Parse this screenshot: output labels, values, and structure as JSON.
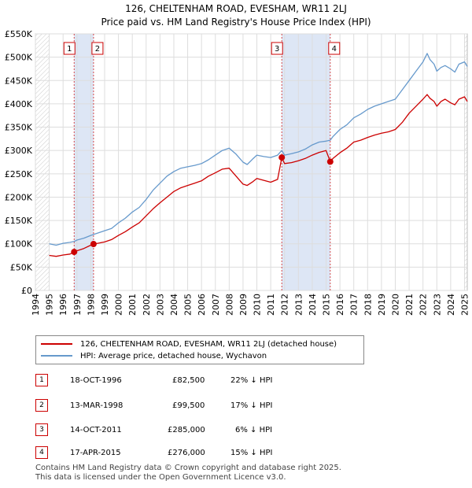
{
  "page": {
    "title": "126, CHELTENHAM ROAD, EVESHAM, WR11 2LJ",
    "subtitle": "Price paid vs. HM Land Registry's House Price Index (HPI)",
    "footer_line1": "Contains HM Land Registry data © Crown copyright and database right 2025.",
    "footer_line2": "This data is licensed under the Open Government Licence v3.0."
  },
  "legend": {
    "property_label": "126, CHELTENHAM ROAD, EVESHAM, WR11 2LJ (detached house)",
    "hpi_label": "HPI: Average price, detached house, Wychavon"
  },
  "sales": [
    {
      "num": "1",
      "date": "18-OCT-1996",
      "price": "£82,500",
      "hpi": "22% ↓ HPI"
    },
    {
      "num": "2",
      "date": "13-MAR-1998",
      "price": "£99,500",
      "hpi": "17% ↓ HPI"
    },
    {
      "num": "3",
      "date": "14-OCT-2011",
      "price": "£285,000",
      "hpi": "6% ↓ HPI"
    },
    {
      "num": "4",
      "date": "17-APR-2015",
      "price": "£276,000",
      "hpi": "15% ↓ HPI"
    }
  ],
  "colors": {
    "property": "#cc0000",
    "hpi": "#6699cc",
    "shade": "#dde6f5",
    "grid": "#dddddd"
  },
  "chart_data": {
    "type": "line",
    "title": "126, CHELTENHAM ROAD, EVESHAM, WR11 2LJ",
    "subtitle": "Price paid vs. HM Land Registry's House Price Index (HPI)",
    "xlim": [
      1995.0,
      2025.3
    ],
    "ylim": [
      0,
      550000
    ],
    "x_ticks": [
      1994,
      1995,
      1996,
      1997,
      1998,
      1999,
      2000,
      2001,
      2002,
      2003,
      2004,
      2005,
      2006,
      2007,
      2008,
      2009,
      2010,
      2011,
      2012,
      2013,
      2014,
      2015,
      2016,
      2017,
      2018,
      2019,
      2020,
      2021,
      2022,
      2023,
      2024,
      2025
    ],
    "y_ticks": [
      0,
      50000,
      100000,
      150000,
      200000,
      250000,
      300000,
      350000,
      400000,
      450000,
      500000,
      550000
    ],
    "y_tick_labels": [
      "£0",
      "£50K",
      "£100K",
      "£150K",
      "£200K",
      "£250K",
      "£300K",
      "£350K",
      "£400K",
      "£450K",
      "£500K",
      "£550K"
    ],
    "shaded_ranges": [
      [
        1996.8,
        1998.2
      ],
      [
        2011.8,
        2015.3
      ]
    ],
    "hatched_ranges": [
      [
        1995.0,
        1995.0
      ],
      [
        2025.0,
        2025.3
      ]
    ],
    "series": [
      {
        "name": "HPI: Average price, detached house, Wychavon",
        "x": [
          1995.0,
          1995.5,
          1996.0,
          1996.5,
          1996.8,
          1997.0,
          1997.5,
          1998.0,
          1998.2,
          1998.5,
          1999.0,
          1999.5,
          2000.0,
          2000.5,
          2001.0,
          2001.5,
          2002.0,
          2002.5,
          2003.0,
          2003.5,
          2004.0,
          2004.5,
          2005.0,
          2005.5,
          2006.0,
          2006.5,
          2007.0,
          2007.5,
          2008.0,
          2008.5,
          2009.0,
          2009.3,
          2009.7,
          2010.0,
          2010.5,
          2011.0,
          2011.5,
          2011.8,
          2012.0,
          2012.5,
          2013.0,
          2013.5,
          2014.0,
          2014.5,
          2015.0,
          2015.3,
          2015.5,
          2016.0,
          2016.5,
          2017.0,
          2017.5,
          2018.0,
          2018.5,
          2019.0,
          2019.5,
          2020.0,
          2020.5,
          2021.0,
          2021.5,
          2022.0,
          2022.3,
          2022.5,
          2022.8,
          2023.0,
          2023.3,
          2023.6,
          2024.0,
          2024.3,
          2024.6,
          2025.0,
          2025.2
        ],
        "values": [
          100000,
          97000,
          101000,
          103000,
          105000,
          108000,
          112000,
          118000,
          120000,
          123000,
          128000,
          133000,
          145000,
          155000,
          168000,
          178000,
          195000,
          215000,
          230000,
          245000,
          255000,
          262000,
          265000,
          268000,
          272000,
          280000,
          290000,
          300000,
          305000,
          292000,
          275000,
          270000,
          282000,
          290000,
          287000,
          285000,
          290000,
          300000,
          290000,
          293000,
          297000,
          303000,
          312000,
          318000,
          320000,
          322000,
          330000,
          345000,
          355000,
          370000,
          378000,
          388000,
          395000,
          400000,
          405000,
          410000,
          430000,
          450000,
          470000,
          490000,
          508000,
          495000,
          485000,
          470000,
          478000,
          482000,
          475000,
          468000,
          485000,
          490000,
          480000
        ]
      },
      {
        "name": "126, CHELTENHAM ROAD, EVESHAM, WR11 2LJ (detached house)",
        "x": [
          1995.0,
          1995.5,
          1996.0,
          1996.5,
          1996.8,
          1997.0,
          1997.5,
          1998.0,
          1998.2,
          1998.5,
          1999.0,
          1999.5,
          2000.0,
          2000.5,
          2001.0,
          2001.5,
          2002.0,
          2002.5,
          2003.0,
          2003.5,
          2004.0,
          2004.5,
          2005.0,
          2005.5,
          2006.0,
          2006.5,
          2007.0,
          2007.5,
          2008.0,
          2008.5,
          2009.0,
          2009.3,
          2009.7,
          2010.0,
          2010.5,
          2011.0,
          2011.5,
          2011.8,
          2012.0,
          2012.5,
          2013.0,
          2013.5,
          2014.0,
          2014.5,
          2015.0,
          2015.3,
          2015.5,
          2016.0,
          2016.5,
          2017.0,
          2017.5,
          2018.0,
          2018.5,
          2019.0,
          2019.5,
          2020.0,
          2020.5,
          2021.0,
          2021.5,
          2022.0,
          2022.3,
          2022.5,
          2022.8,
          2023.0,
          2023.3,
          2023.6,
          2024.0,
          2024.3,
          2024.6,
          2025.0,
          2025.2
        ],
        "values": [
          75000,
          73000,
          76000,
          78000,
          82500,
          85000,
          90000,
          97000,
          99500,
          101000,
          104000,
          109000,
          118000,
          126000,
          136000,
          145000,
          160000,
          175000,
          188000,
          200000,
          212000,
          220000,
          225000,
          230000,
          235000,
          245000,
          252000,
          260000,
          262000,
          245000,
          228000,
          225000,
          233000,
          240000,
          236000,
          232000,
          238000,
          285000,
          272000,
          274000,
          278000,
          283000,
          290000,
          296000,
          300000,
          276000,
          283000,
          295000,
          305000,
          318000,
          322000,
          328000,
          333000,
          337000,
          340000,
          345000,
          360000,
          380000,
          395000,
          410000,
          420000,
          412000,
          405000,
          395000,
          405000,
          410000,
          402000,
          398000,
          410000,
          415000,
          405000
        ]
      }
    ],
    "sale_points": [
      {
        "label": "1",
        "x": 1996.8,
        "value": 82500
      },
      {
        "label": "2",
        "x": 1998.2,
        "value": 99500
      },
      {
        "label": "3",
        "x": 2011.8,
        "value": 285000
      },
      {
        "label": "4",
        "x": 2015.3,
        "value": 276000
      }
    ]
  }
}
